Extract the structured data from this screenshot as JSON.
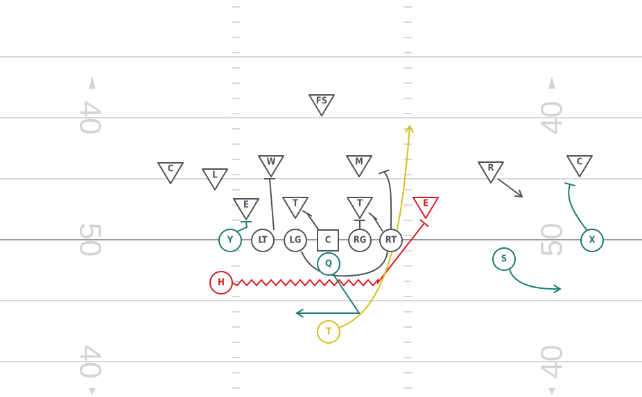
{
  "field": {
    "yard_numbers_left": [
      "40",
      "50",
      "40"
    ],
    "yard_numbers_right": [
      "40",
      "50",
      "40"
    ]
  },
  "offense": [
    {
      "label": "Y"
    },
    {
      "label": "LT"
    },
    {
      "label": "LG"
    },
    {
      "label": "C"
    },
    {
      "label": "RG"
    },
    {
      "label": "RT"
    },
    {
      "label": "Q"
    },
    {
      "label": "H"
    },
    {
      "label": "T"
    },
    {
      "label": "S"
    },
    {
      "label": "X"
    }
  ],
  "defense": [
    {
      "label": "FS"
    },
    {
      "label": "C"
    },
    {
      "label": "L"
    },
    {
      "label": "W"
    },
    {
      "label": "M"
    },
    {
      "label": "R"
    },
    {
      "label": "C"
    },
    {
      "label": "E"
    },
    {
      "label": "T"
    },
    {
      "label": "T"
    },
    {
      "label": "E"
    }
  ]
}
